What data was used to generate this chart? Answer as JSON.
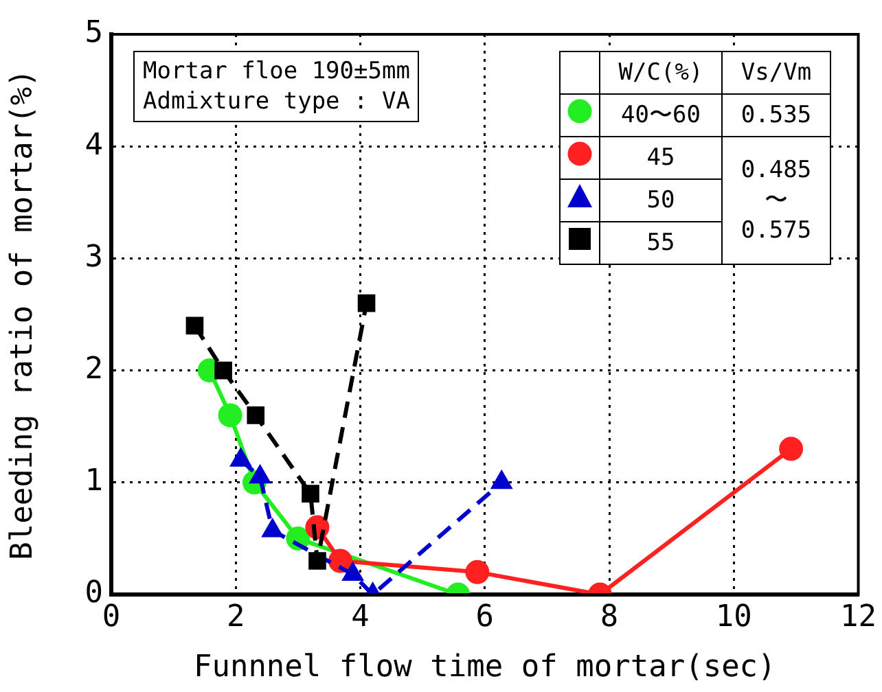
{
  "chart_data": {
    "type": "line",
    "xlabel": "Funnnel flow time of mortar(sec)",
    "ylabel": "Bleeding ratio of mortar(%)",
    "legend_title": "W/C(%)",
    "xlim": [
      0,
      12
    ],
    "xticks": [
      0,
      2,
      4,
      6,
      8,
      10,
      12
    ],
    "ylim": [
      0,
      5
    ],
    "yticks": [
      0,
      1,
      2,
      3,
      4,
      5
    ],
    "grid": true,
    "legend": "top right",
    "annotations": [
      "Mortar floe 190±5mm",
      "Admixture type : VA",
      "Vs/Vm",
      "0.535",
      "0.485",
      "〜",
      "0.575"
    ],
    "series": [
      {
        "name": "40〜60",
        "color": "#22ee22",
        "marker": "circle",
        "line_style": "solid",
        "x": [
          1.58,
          1.91,
          2.3,
          3.0,
          5.57
        ],
        "values": [
          2.0,
          1.6,
          1.0,
          0.5,
          0.0
        ]
      },
      {
        "name": "45",
        "color": "#ff2020",
        "marker": "circle",
        "line_style": "solid",
        "x": [
          3.31,
          3.68,
          5.88,
          7.85,
          10.92
        ],
        "values": [
          0.6,
          0.3,
          0.2,
          0.0,
          1.3
        ]
      },
      {
        "name": "50",
        "color": "#0000cc",
        "marker": "triangle",
        "line_style": "dashed",
        "x": [
          2.08,
          2.39,
          2.59,
          3.88,
          4.2,
          6.27
        ],
        "values": [
          1.2,
          1.05,
          0.57,
          0.18,
          0.0,
          1.0
        ]
      },
      {
        "name": "55",
        "color": "#000000",
        "marker": "square",
        "line_style": "dashed",
        "x": [
          1.34,
          1.8,
          2.32,
          3.2,
          3.31,
          4.1
        ],
        "values": [
          2.4,
          2.0,
          1.6,
          0.9,
          0.3,
          2.6
        ]
      }
    ]
  }
}
